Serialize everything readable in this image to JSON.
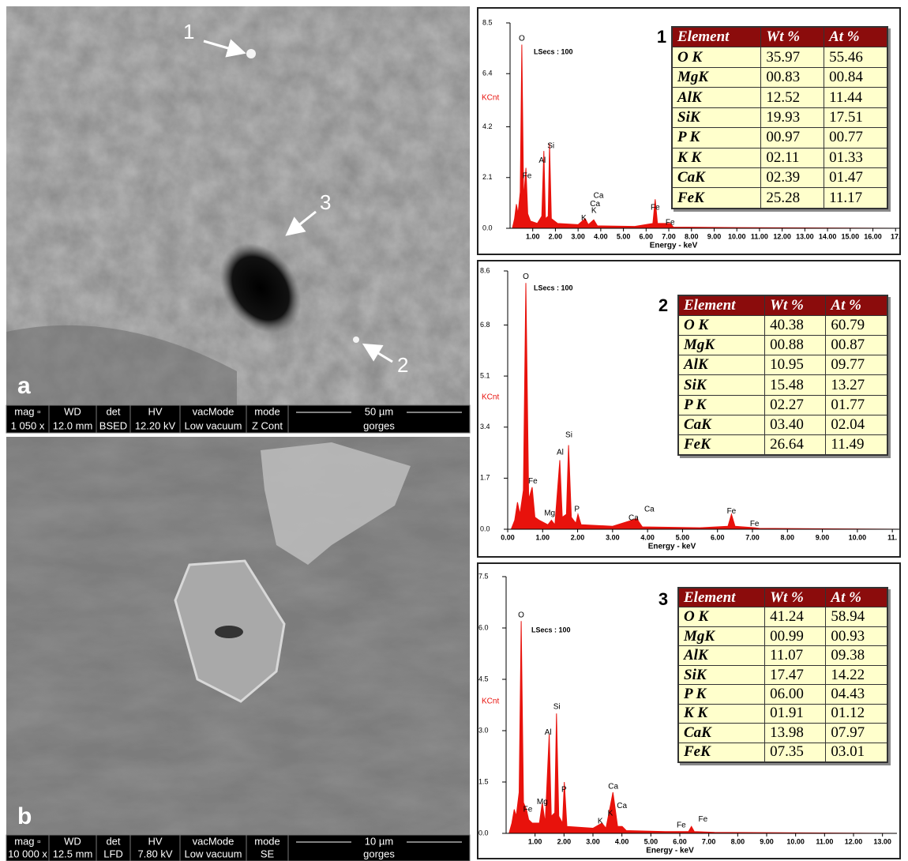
{
  "figures": [
    {
      "letter": "a",
      "arrows": [
        "1",
        "2",
        "3"
      ],
      "info": {
        "head": [
          "mag ▫",
          "WD",
          "det",
          "HV",
          "vacMode",
          "mode"
        ],
        "values": [
          "1 050 x",
          "12.0 mm",
          "BSED",
          "12.20 kV",
          "Low vacuum",
          "Z Cont"
        ],
        "scale": "50 µm",
        "name": "gorges"
      }
    },
    {
      "letter": "b",
      "info": {
        "head": [
          "mag ▫",
          "WD",
          "det",
          "HV",
          "vacMode",
          "mode"
        ],
        "values": [
          "10 000 x",
          "12.5 mm",
          "LFD",
          "7.80 kV",
          "Low vacuum",
          "SE"
        ],
        "scale": "10 µm",
        "name": "gorges"
      }
    }
  ],
  "chart_data": [
    {
      "type": "area",
      "label": "1",
      "ylabel": "KCnt",
      "xlabel": "Energy - keV",
      "note": "LSecs : 100",
      "x": [
        0.1,
        0.2,
        0.28,
        0.35,
        0.45,
        0.52,
        0.6,
        0.7,
        0.78,
        0.9,
        1.2,
        1.4,
        1.49,
        1.56,
        1.68,
        1.74,
        1.82,
        2.1,
        3.0,
        3.31,
        3.45,
        3.69,
        3.85,
        5.5,
        6.3,
        6.4,
        6.5,
        7.06,
        7.2,
        10,
        17
      ],
      "series": [
        {
          "color": "#e8120c",
          "values": [
            0,
            0.4,
            1.0,
            0.6,
            1.5,
            7.6,
            1.2,
            2.5,
            0.6,
            0.3,
            0.2,
            0.5,
            3.2,
            0.4,
            0.5,
            3.5,
            0.4,
            0.2,
            0.15,
            0.4,
            0.15,
            0.35,
            0.1,
            0.08,
            0.2,
            1.2,
            0.2,
            0.2,
            0.05,
            0.03,
            0
          ]
        }
      ],
      "peaks": [
        {
          "text": "O",
          "x": 0.52,
          "y": 7.85
        },
        {
          "text": "Fe",
          "x": 0.75,
          "y": 2.16
        },
        {
          "text": "Al",
          "x": 1.42,
          "y": 2.8
        },
        {
          "text": "Si",
          "x": 1.8,
          "y": 3.4
        },
        {
          "text": "K",
          "x": 3.25,
          "y": 0.42
        },
        {
          "text": "K",
          "x": 3.7,
          "y": 0.72
        },
        {
          "text": "Ca",
          "x": 3.75,
          "y": 1.0
        },
        {
          "text": "Ca",
          "x": 3.9,
          "y": 1.34
        },
        {
          "text": "Fe",
          "x": 6.4,
          "y": 0.85
        },
        {
          "text": "Fe",
          "x": 7.06,
          "y": 0.23
        }
      ],
      "xlim": [
        0,
        17.2
      ],
      "ylim": [
        0,
        8.5
      ],
      "yticks": [
        {
          "value": 0,
          "label": "0.0"
        },
        2.1,
        4.2,
        6.4,
        8.5
      ],
      "xticks": [
        {
          "value": 1,
          "label": "1.00"
        },
        {
          "value": 2,
          "label": "2.00"
        },
        {
          "value": 3,
          "label": "3.00"
        },
        {
          "value": 4,
          "label": "4.00"
        },
        {
          "value": 5,
          "label": "5.00"
        },
        {
          "value": 6,
          "label": "6.00"
        },
        {
          "value": 7,
          "label": "7.00"
        },
        {
          "value": 8,
          "label": "8.00"
        },
        {
          "value": 9,
          "label": "9.00"
        },
        {
          "value": 10,
          "label": "10.00"
        },
        {
          "value": 11,
          "label": "11.00"
        },
        {
          "value": 12,
          "label": "12.00"
        },
        {
          "value": 13,
          "label": "13.00"
        },
        {
          "value": 14,
          "label": "14.00"
        },
        {
          "value": 15,
          "label": "15.00"
        },
        {
          "value": 16,
          "label": "16.00"
        },
        {
          "value": 17,
          "label": "17."
        }
      ],
      "table": {
        "header": [
          "Element",
          "Wt %",
          "At %"
        ],
        "rows": [
          [
            "O K",
            "35.97",
            "55.46"
          ],
          [
            "MgK",
            "00.83",
            "00.84"
          ],
          [
            "AlK",
            "12.52",
            "11.44"
          ],
          [
            "SiK",
            "19.93",
            "17.51"
          ],
          [
            "P K",
            "00.97",
            "00.77"
          ],
          [
            "K K",
            "02.11",
            "01.33"
          ],
          [
            "CaK",
            "02.39",
            "01.47"
          ],
          [
            "FeK",
            "25.28",
            "11.17"
          ]
        ]
      }
    },
    {
      "type": "area",
      "label": "2",
      "ylabel": "KCnt",
      "xlabel": "Energy - keV",
      "note": "LSecs : 100",
      "x": [
        0.1,
        0.2,
        0.28,
        0.35,
        0.45,
        0.52,
        0.6,
        0.7,
        0.78,
        0.9,
        1.15,
        1.25,
        1.35,
        1.49,
        1.56,
        1.68,
        1.74,
        1.82,
        1.95,
        2.01,
        2.1,
        3.0,
        3.69,
        3.85,
        5.5,
        6.3,
        6.4,
        6.5,
        7.06,
        7.2,
        11.2
      ],
      "series": [
        {
          "color": "#e8120c",
          "values": [
            0,
            0.3,
            0.9,
            0.5,
            1.3,
            8.2,
            1.0,
            1.4,
            0.4,
            0.3,
            0.15,
            0.3,
            0.15,
            2.3,
            0.4,
            0.5,
            2.8,
            0.4,
            0.2,
            0.5,
            0.15,
            0.1,
            0.35,
            0.08,
            0.05,
            0.1,
            0.5,
            0.1,
            0.05,
            0.03,
            0
          ]
        }
      ],
      "peaks": [
        {
          "text": "O",
          "x": 0.52,
          "y": 8.4
        },
        {
          "text": "Fe",
          "x": 0.72,
          "y": 1.6
        },
        {
          "text": "Al",
          "x": 1.5,
          "y": 2.55
        },
        {
          "text": "Si",
          "x": 1.75,
          "y": 3.13
        },
        {
          "text": "P",
          "x": 1.98,
          "y": 0.66
        },
        {
          "text": "Mg",
          "x": 1.2,
          "y": 0.53
        },
        {
          "text": "Ca",
          "x": 3.6,
          "y": 0.37
        },
        {
          "text": "Ca",
          "x": 4.05,
          "y": 0.66
        },
        {
          "text": "Fe",
          "x": 6.4,
          "y": 0.6
        },
        {
          "text": "Fe",
          "x": 7.06,
          "y": 0.18
        }
      ],
      "xlim": [
        0,
        11.2
      ],
      "ylim": [
        0,
        8.6
      ],
      "yticks": [
        {
          "value": 0,
          "label": "0.0"
        },
        1.7,
        3.4,
        5.1,
        6.8,
        8.6
      ],
      "xticks": [
        {
          "value": 0,
          "label": "0.00"
        },
        {
          "value": 1,
          "label": "1.00"
        },
        {
          "value": 2,
          "label": "2.00"
        },
        {
          "value": 3,
          "label": "3.00"
        },
        {
          "value": 4,
          "label": "4.00"
        },
        {
          "value": 5,
          "label": "5.00"
        },
        {
          "value": 6,
          "label": "6.00"
        },
        {
          "value": 7,
          "label": "7.00"
        },
        {
          "value": 8,
          "label": "8.00"
        },
        {
          "value": 9,
          "label": "9.00"
        },
        {
          "value": 10,
          "label": "10.00"
        },
        {
          "value": 11,
          "label": "11."
        }
      ],
      "table": {
        "header": [
          "Element",
          "Wt %",
          "At %"
        ],
        "rows": [
          [
            "O K",
            "40.38",
            "60.79"
          ],
          [
            "MgK",
            "00.88",
            "00.87"
          ],
          [
            "AlK",
            "10.95",
            "09.77"
          ],
          [
            "SiK",
            "15.48",
            "13.27"
          ],
          [
            "P K",
            "02.27",
            "01.77"
          ],
          [
            "CaK",
            "03.40",
            "02.04"
          ],
          [
            "FeK",
            "26.64",
            "11.49"
          ]
        ]
      }
    },
    {
      "type": "area",
      "label": "3",
      "ylabel": "KCnt",
      "xlabel": "Energy - keV",
      "note": "LSecs : 100",
      "x": [
        0.1,
        0.2,
        0.28,
        0.35,
        0.45,
        0.52,
        0.6,
        0.7,
        0.78,
        0.9,
        1.15,
        1.25,
        1.35,
        1.49,
        1.56,
        1.68,
        1.74,
        1.82,
        1.95,
        2.01,
        2.1,
        3.0,
        3.31,
        3.45,
        3.69,
        3.85,
        4.01,
        4.15,
        5.5,
        6.3,
        6.4,
        6.5,
        7.2,
        13.5
      ],
      "series": [
        {
          "color": "#e8120c",
          "values": [
            0,
            0.3,
            0.7,
            0.5,
            1.2,
            6.2,
            0.9,
            0.7,
            0.4,
            0.3,
            0.3,
            0.9,
            0.3,
            2.9,
            0.5,
            0.6,
            3.5,
            0.5,
            0.3,
            1.5,
            0.2,
            0.15,
            0.3,
            0.15,
            1.2,
            0.2,
            0.2,
            0.08,
            0.05,
            0.05,
            0.2,
            0.05,
            0.03,
            0
          ]
        }
      ],
      "peaks": [
        {
          "text": "O",
          "x": 0.52,
          "y": 6.37
        },
        {
          "text": "Fe",
          "x": 0.75,
          "y": 0.69
        },
        {
          "text": "Mg",
          "x": 1.25,
          "y": 0.92
        },
        {
          "text": "Al",
          "x": 1.45,
          "y": 2.95
        },
        {
          "text": "Si",
          "x": 1.75,
          "y": 3.69
        },
        {
          "text": "P",
          "x": 2.0,
          "y": 1.27
        },
        {
          "text": "K",
          "x": 3.25,
          "y": 0.35
        },
        {
          "text": "K",
          "x": 3.6,
          "y": 0.58
        },
        {
          "text": "Ca",
          "x": 3.7,
          "y": 1.36
        },
        {
          "text": "Ca",
          "x": 4.0,
          "y": 0.8
        },
        {
          "text": "Fe",
          "x": 6.05,
          "y": 0.23
        },
        {
          "text": "Fe",
          "x": 6.8,
          "y": 0.41
        }
      ],
      "xlim": [
        0,
        13.5
      ],
      "ylim": [
        0,
        7.5
      ],
      "yticks": [
        {
          "value": 0,
          "label": "0.0"
        },
        1.5,
        {
          "value": 3,
          "label": "3.0"
        },
        4.5,
        {
          "value": 6,
          "label": "6.0"
        },
        7.5
      ],
      "xticks": [
        {
          "value": 1,
          "label": "1.00"
        },
        {
          "value": 2,
          "label": "2.00"
        },
        {
          "value": 3,
          "label": "3.00"
        },
        {
          "value": 4,
          "label": "4.00"
        },
        {
          "value": 5,
          "label": "5.00"
        },
        {
          "value": 6,
          "label": "6.00"
        },
        {
          "value": 7,
          "label": "7.00"
        },
        {
          "value": 8,
          "label": "8.00"
        },
        {
          "value": 9,
          "label": "9.00"
        },
        {
          "value": 10,
          "label": "10.00"
        },
        {
          "value": 11,
          "label": "11.00"
        },
        {
          "value": 12,
          "label": "12.00"
        },
        {
          "value": 13,
          "label": "13.00"
        }
      ],
      "table": {
        "header": [
          "Element",
          "Wt %",
          "At %"
        ],
        "rows": [
          [
            "O K",
            "41.24",
            "58.94"
          ],
          [
            "MgK",
            "00.99",
            "00.93"
          ],
          [
            "AlK",
            "11.07",
            "09.38"
          ],
          [
            "SiK",
            "17.47",
            "14.22"
          ],
          [
            "P K",
            "06.00",
            "04.43"
          ],
          [
            "K K",
            "01.91",
            "01.12"
          ],
          [
            "CaK",
            "13.98",
            "07.97"
          ],
          [
            "FeK",
            "07.35",
            "03.01"
          ]
        ]
      }
    }
  ]
}
